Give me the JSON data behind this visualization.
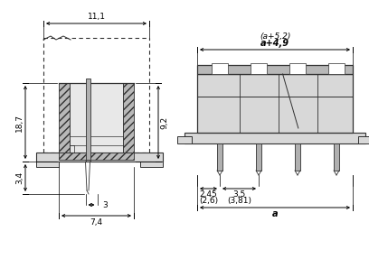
{
  "bg_color": "#ffffff",
  "lc": "#303030",
  "dc": "#000000",
  "gray_light": "#d8d8d8",
  "gray_mid": "#b8b8b8",
  "gray_hatch": "#c0c0c0",
  "pin_gray": "#b0b0b0",
  "dim_11_1": "11,1",
  "dim_18_7": "18,7",
  "dim_9_2": "9,2",
  "dim_3_4": "3,4",
  "dim_3": "3",
  "dim_7_4": "7,4",
  "dim_a_49": "a+4,9",
  "dim_a_52": "(a+5,2)",
  "dim_2_45": "2,45",
  "dim_2_6": "(2,6)",
  "dim_3_5": "3,5",
  "dim_3_81": "(3,81)",
  "dim_a": "a"
}
